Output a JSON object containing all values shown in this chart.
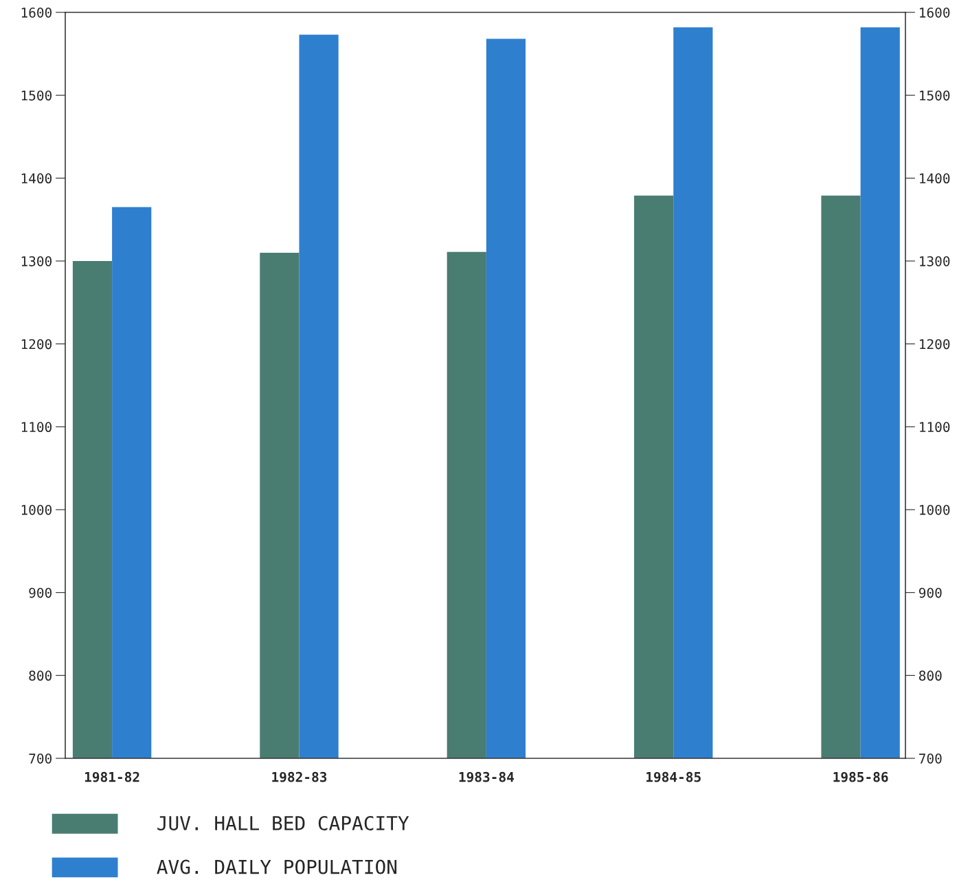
{
  "chart_data": {
    "type": "bar",
    "categories": [
      "1981-82",
      "1982-83",
      "1983-84",
      "1984-85",
      "1985-86"
    ],
    "series": [
      {
        "name": "JUV. HALL BED CAPACITY",
        "color": "#4a7d72",
        "values": [
          1300,
          1310,
          1311,
          1379,
          1379
        ]
      },
      {
        "name": "AVG. DAILY POPULATION",
        "color": "#2f7fcf",
        "values": [
          1365,
          1573,
          1568,
          1582,
          1582
        ]
      }
    ],
    "ylim": [
      700,
      1600
    ],
    "yticks": [
      700,
      800,
      900,
      1000,
      1100,
      1200,
      1300,
      1400,
      1500,
      1600
    ],
    "y2lim": [
      700,
      1600
    ],
    "y2ticks": [
      700,
      800,
      900,
      1000,
      1100,
      1200,
      1300,
      1400,
      1500,
      1600
    ],
    "grid": false,
    "legend": "bottom left"
  }
}
